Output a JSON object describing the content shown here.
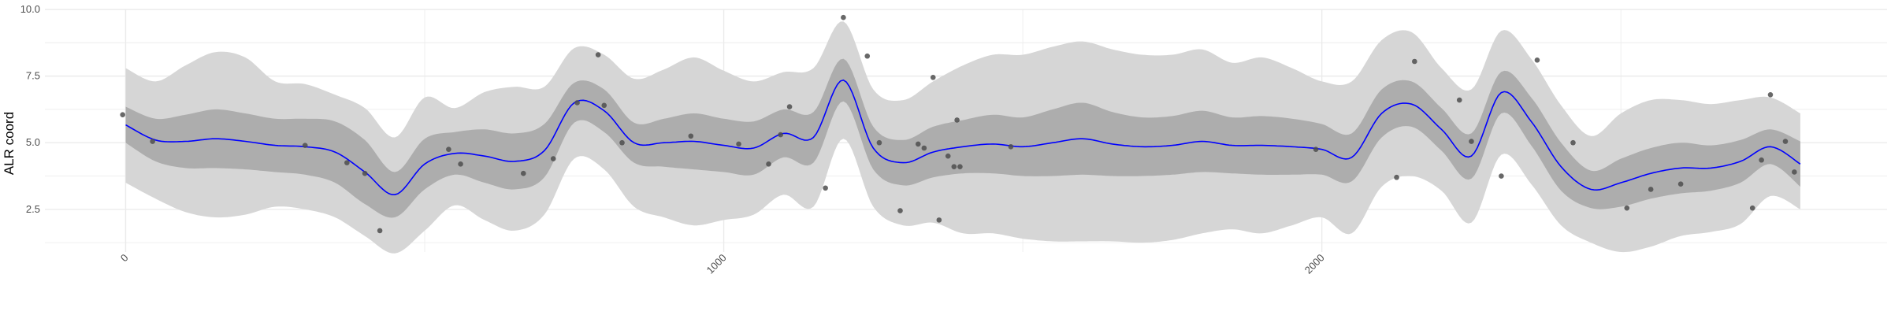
{
  "chart_data": {
    "type": "line",
    "title": "",
    "xlabel": "",
    "ylabel": "ALR coord",
    "xlim": [
      -135,
      2945
    ],
    "ylim": [
      0.9,
      10.0
    ],
    "x_ticks": [
      0,
      1000,
      2000
    ],
    "x_tick_labels": [
      "0",
      "1000",
      "2000"
    ],
    "y_ticks": [
      2.5,
      5.0,
      7.5,
      10.0
    ],
    "y_tick_labels": [
      "2.5",
      "5.0",
      "7.5",
      "10.0"
    ],
    "grid": true,
    "legend": "none",
    "colors": {
      "mean_line": "#0000ff",
      "inner_band": "#adadad",
      "outer_band": "#d6d6d6",
      "points": "#4d4d4d",
      "grid": "#ebebeb"
    },
    "mean_curve": {
      "x": [
        0,
        50,
        100,
        150,
        200,
        250,
        300,
        350,
        400,
        450,
        500,
        550,
        600,
        650,
        700,
        750,
        800,
        850,
        900,
        950,
        1000,
        1050,
        1100,
        1150,
        1200,
        1250,
        1300,
        1350,
        1400,
        1450,
        1500,
        1550,
        1600,
        1650,
        1700,
        1750,
        1800,
        1850,
        1900,
        1950,
        2000,
        2050,
        2100,
        2150,
        2200,
        2250,
        2300,
        2350,
        2400,
        2450,
        2500,
        2550,
        2600,
        2650,
        2700,
        2750,
        2800
      ],
      "y": [
        5.67,
        5.1,
        5.05,
        5.15,
        5.05,
        4.9,
        4.85,
        4.65,
        3.9,
        3.05,
        4.2,
        4.6,
        4.5,
        4.3,
        4.7,
        6.5,
        6.2,
        5.0,
        5.0,
        5.05,
        4.9,
        4.8,
        5.35,
        5.2,
        7.35,
        4.8,
        4.25,
        4.65,
        4.85,
        4.95,
        4.85,
        5.0,
        5.15,
        4.95,
        4.85,
        4.9,
        5.05,
        4.9,
        4.9,
        4.85,
        4.75,
        4.45,
        6.1,
        6.45,
        5.5,
        4.5,
        6.88,
        5.8,
        4.1,
        3.25,
        3.5,
        3.85,
        4.05,
        4.05,
        4.3,
        4.85,
        4.2
      ],
      "inner_lower": [
        5.0,
        4.3,
        4.05,
        4.05,
        4.0,
        3.9,
        3.8,
        3.5,
        2.7,
        2.2,
        3.25,
        3.8,
        3.5,
        3.25,
        3.7,
        5.75,
        5.4,
        4.25,
        4.1,
        4.0,
        3.9,
        3.8,
        4.45,
        4.25,
        6.55,
        4.0,
        3.4,
        3.7,
        3.85,
        3.85,
        3.75,
        3.75,
        3.8,
        3.75,
        3.75,
        3.8,
        3.9,
        3.85,
        3.8,
        3.8,
        3.8,
        3.55,
        5.2,
        5.6,
        4.7,
        3.65,
        6.1,
        4.9,
        3.2,
        2.55,
        2.6,
        2.9,
        3.1,
        3.2,
        3.5,
        4.2,
        3.35
      ],
      "inner_upper": [
        6.35,
        5.9,
        6.05,
        6.25,
        6.1,
        5.9,
        5.9,
        5.8,
        5.1,
        3.9,
        5.15,
        5.4,
        5.5,
        5.35,
        5.7,
        7.25,
        7.0,
        5.75,
        5.9,
        6.1,
        5.9,
        5.8,
        6.25,
        6.15,
        8.15,
        5.6,
        5.1,
        5.6,
        5.85,
        6.05,
        5.95,
        6.25,
        6.5,
        6.15,
        5.95,
        6.0,
        6.2,
        5.95,
        6.0,
        5.9,
        5.7,
        5.35,
        7.0,
        7.3,
        6.3,
        5.35,
        7.66,
        6.7,
        5.0,
        3.95,
        4.4,
        4.8,
        5.0,
        4.9,
        5.1,
        5.5,
        5.05
      ],
      "outer_lower": [
        3.5,
        2.9,
        2.4,
        2.2,
        2.3,
        2.6,
        2.5,
        2.2,
        1.5,
        0.85,
        1.7,
        2.65,
        2.1,
        1.7,
        2.3,
        4.4,
        4.0,
        2.6,
        2.2,
        1.9,
        2.1,
        2.3,
        3.05,
        2.6,
        5.15,
        2.6,
        1.9,
        2.0,
        1.6,
        1.6,
        1.4,
        1.3,
        1.3,
        1.3,
        1.25,
        1.35,
        1.6,
        1.75,
        1.6,
        1.9,
        2.2,
        1.6,
        3.35,
        3.75,
        3.2,
        2.0,
        4.55,
        3.45,
        1.9,
        1.25,
        0.9,
        1.1,
        1.5,
        1.65,
        1.95,
        3.0,
        2.5
      ],
      "outer_upper": [
        7.8,
        7.3,
        7.9,
        8.4,
        8.2,
        7.3,
        7.2,
        6.8,
        6.3,
        5.2,
        6.7,
        6.3,
        6.9,
        7.1,
        7.1,
        8.55,
        8.3,
        7.4,
        7.75,
        8.2,
        7.7,
        7.3,
        7.65,
        7.8,
        9.55,
        7.0,
        6.6,
        7.3,
        7.9,
        8.3,
        8.3,
        8.6,
        8.8,
        8.5,
        8.3,
        8.3,
        8.5,
        8.0,
        8.2,
        7.8,
        7.3,
        7.3,
        8.85,
        9.15,
        7.8,
        7.0,
        9.2,
        8.15,
        6.4,
        5.25,
        6.1,
        6.6,
        6.6,
        6.45,
        6.6,
        6.7,
        6.1
      ]
    },
    "points": {
      "x": [
        -5,
        45,
        300,
        370,
        400,
        425,
        540,
        560,
        665,
        715,
        755,
        790,
        800,
        830,
        945,
        1025,
        1075,
        1095,
        1110,
        1170,
        1200,
        1240,
        1260,
        1295,
        1325,
        1335,
        1350,
        1360,
        1375,
        1385,
        1390,
        1395,
        1480,
        1990,
        2125,
        2155,
        2230,
        2250,
        2300,
        2360,
        2420,
        2510,
        2550,
        2600,
        2720,
        2735,
        2750,
        2775,
        2790
      ],
      "y": [
        6.05,
        5.05,
        4.9,
        4.25,
        3.85,
        1.7,
        4.75,
        4.2,
        3.85,
        4.4,
        6.5,
        8.3,
        6.4,
        5.0,
        5.25,
        4.95,
        4.2,
        5.3,
        6.35,
        3.3,
        9.7,
        8.25,
        5.0,
        2.45,
        4.95,
        4.8,
        7.45,
        2.1,
        4.5,
        4.1,
        5.85,
        4.1,
        4.85,
        4.75,
        3.7,
        8.05,
        6.6,
        5.05,
        3.75,
        8.1,
        5.0,
        2.55,
        3.25,
        3.45,
        2.55,
        4.35,
        6.8,
        5.05,
        3.9
      ]
    }
  }
}
